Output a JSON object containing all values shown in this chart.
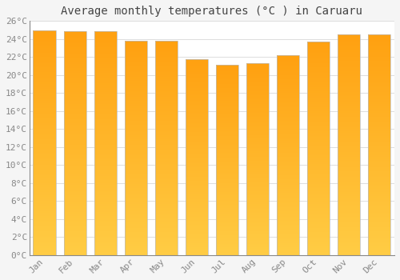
{
  "title": "Average monthly temperatures (°C ) in Caruaru",
  "months": [
    "Jan",
    "Feb",
    "Mar",
    "Apr",
    "May",
    "Jun",
    "Jul",
    "Aug",
    "Sep",
    "Oct",
    "Nov",
    "Dec"
  ],
  "values": [
    25.0,
    24.9,
    24.9,
    23.8,
    23.8,
    21.8,
    21.1,
    21.3,
    22.2,
    23.7,
    24.5,
    24.5
  ],
  "bar_color_bottom": "#FFCC44",
  "bar_color_top": "#FFA010",
  "bar_edge_color": "#BBBBBB",
  "background_color": "#F5F5F5",
  "plot_bg_color": "#FFFFFF",
  "grid_color": "#DDDDDD",
  "text_color": "#888888",
  "title_color": "#444444",
  "ylim": [
    0,
    26
  ],
  "yticks": [
    0,
    2,
    4,
    6,
    8,
    10,
    12,
    14,
    16,
    18,
    20,
    22,
    24,
    26
  ],
  "title_fontsize": 10,
  "tick_fontsize": 8,
  "bar_width": 0.75
}
